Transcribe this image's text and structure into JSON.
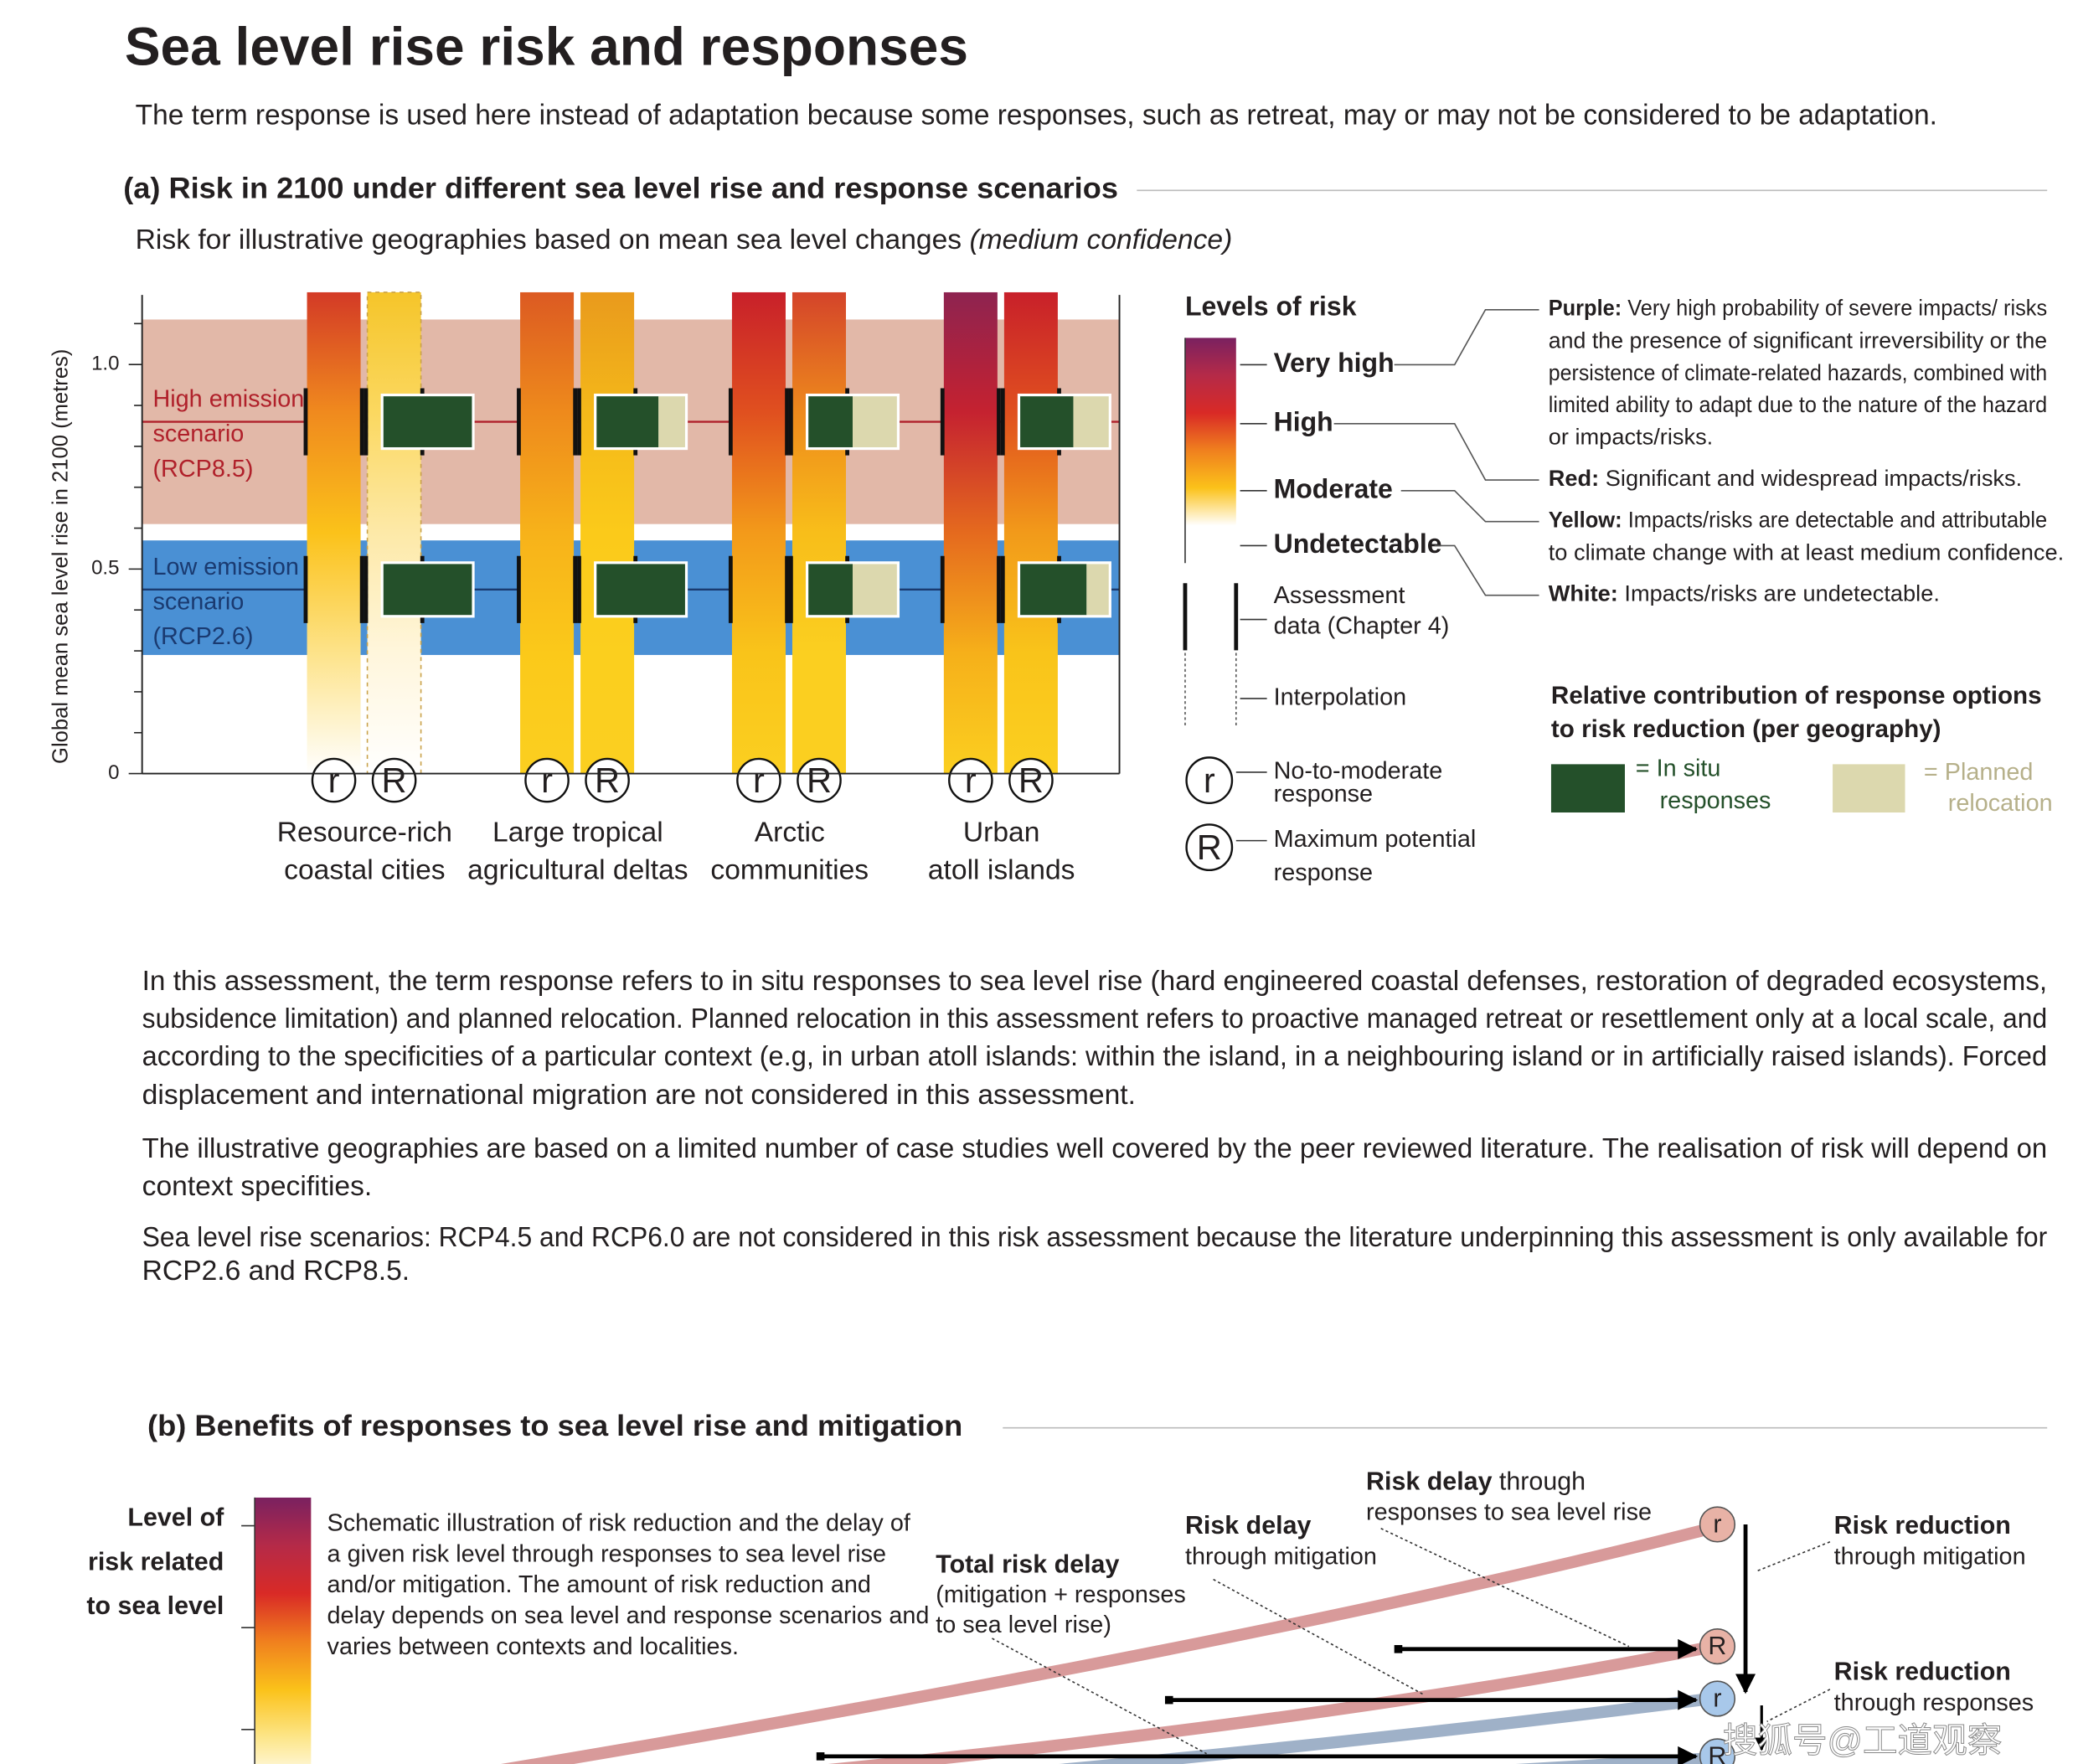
{
  "title": "Sea level rise risk and responses",
  "subtitle": "The term response is used here instead of adaptation because some responses, such as retreat, may or may not be considered to be adaptation.",
  "panel_a": {
    "heading": "(a) Risk in 2100 under different sea level rise and response scenarios",
    "caption": "Risk for illustrative geographies based on mean sea level changes",
    "caption_italic": "(medium confidence)",
    "y_axis_label": "Global mean sea level rise in 2100 (metres)",
    "ylim": [
      0,
      1.17
    ],
    "yticks": [
      0,
      0.5,
      {
        "value": 1,
        "label": "1.0"
      }
    ],
    "minor_yticks": [
      0.1,
      0.2,
      0.3,
      0.4,
      0.6,
      0.7,
      0.8,
      0.9,
      1.1
    ],
    "scenarios": [
      {
        "lines": [
          "High emission",
          "scenario",
          "(RCP8.5)"
        ],
        "range": [
          0.61,
          1.11
        ],
        "median": 0.86,
        "color": "#e2b8a8",
        "line_color": "#b0202a"
      },
      {
        "lines": [
          "Low emission",
          "scenario",
          "(RCP2.6)"
        ],
        "range": [
          0.29,
          0.57
        ],
        "median": 0.45,
        "color": "#4a90d4",
        "line_color": "#1a3a70"
      }
    ],
    "geographies": [
      {
        "name": [
          "Resource-rich",
          "coastal cities"
        ],
        "columns": [
          {
            "symbol": "r",
            "colors": [
              "#d33a26",
              "#f08a1e",
              "#fbc21a",
              "#fde38a",
              "#ffffff"
            ]
          },
          {
            "symbol": "R",
            "colors": [
              "#f5c52a",
              "#fbd860",
              "#fde9a8",
              "#fff6dc",
              "#ffffff"
            ],
            "dashed": true
          }
        ],
        "contributions": [
          {
            "in_situ": 100,
            "planned_relocation": 0
          },
          {
            "in_situ": 100,
            "planned_relocation": 0
          }
        ]
      },
      {
        "name": [
          "Large tropical",
          "agricultural deltas"
        ],
        "columns": [
          {
            "symbol": "r",
            "colors": [
              "#dc5a22",
              "#ee8a1c",
              "#f7b21a",
              "#fbc91a",
              "#fbcf20"
            ]
          },
          {
            "symbol": "R",
            "colors": [
              "#e99a1c",
              "#f4b81a",
              "#fbca1a",
              "#fbcf1e",
              "#fbcf20"
            ]
          }
        ],
        "contributions": [
          {
            "in_situ": 70,
            "planned_relocation": 30
          },
          {
            "in_situ": 100,
            "planned_relocation": 0
          }
        ]
      },
      {
        "name": [
          "Arctic",
          "communities"
        ],
        "columns": [
          {
            "symbol": "r",
            "colors": [
              "#c8202a",
              "#e0501f",
              "#f39a1a",
              "#f9c41a",
              "#fbcf20"
            ]
          },
          {
            "symbol": "R",
            "colors": [
              "#d4442a",
              "#ee8a1c",
              "#f8be1a",
              "#fbcf20",
              "#fbcf20"
            ]
          }
        ],
        "contributions": [
          {
            "in_situ": 50,
            "planned_relocation": 50
          },
          {
            "in_situ": 50,
            "planned_relocation": 50
          }
        ]
      },
      {
        "name": [
          "Urban",
          "atoll islands"
        ],
        "columns": [
          {
            "symbol": "r",
            "colors": [
              "#8e2350",
              "#c52230",
              "#e56a1e",
              "#f6b01a",
              "#fbcf20"
            ]
          },
          {
            "symbol": "R",
            "colors": [
              "#c8202a",
              "#e0501f",
              "#f29a1a",
              "#f9c41a",
              "#fbcf20"
            ]
          }
        ],
        "contributions": [
          {
            "in_situ": 60,
            "planned_relocation": 40
          },
          {
            "in_situ": 75,
            "planned_relocation": 25
          }
        ]
      }
    ],
    "levels_legend": {
      "title": "Levels of risk",
      "colors": [
        "#7a2160",
        "#b52a48",
        "#d92a26",
        "#f0801e",
        "#fbc21a",
        "#ffffff",
        "#ffffff"
      ],
      "levels": [
        {
          "label": "Very high",
          "color_name": "Purple:",
          "description": [
            "Very high probability of severe impacts/ risks",
            "and the presence of significant irreversibility or the",
            "persistence of climate-related hazards, combined with",
            "limited ability to adapt due to the nature of the hazard",
            "or impacts/risks."
          ]
        },
        {
          "label": "High",
          "color_name": "Red:",
          "description": [
            "Significant and widespread impacts/risks."
          ]
        },
        {
          "label": "Moderate",
          "color_name": "Yellow:",
          "description": [
            "Impacts/risks are detectable and attributable",
            "to climate change with at least medium confidence."
          ]
        },
        {
          "label": "Undetectable",
          "color_name": "White:",
          "description": [
            "Impacts/risks are undetectable."
          ]
        }
      ],
      "assessment": [
        "Assessment",
        "data (Chapter 4)"
      ],
      "interpolation": "Interpolation",
      "r_symbol": "r",
      "r_label": [
        "No-to-moderate",
        "response"
      ],
      "R_symbol": "R",
      "R_label": [
        "Maximum potential",
        "response"
      ]
    },
    "response_legend": {
      "title": [
        "Relative contribution of response options",
        "to risk reduction (per geography)"
      ],
      "in_situ": {
        "label": [
          "= In situ",
          "responses"
        ],
        "color": "#24502a"
      },
      "planned": {
        "label": [
          "= Planned",
          "relocation"
        ],
        "color": "#dcd8ae"
      }
    }
  },
  "notes": [
    [
      "In this assessment, the term response refers to in situ responses to sea level rise (hard engineered coastal defenses, restoration of degraded ecosystems,",
      "subsidence limitation) and planned relocation. Planned relocation in this assessment refers to proactive managed retreat or resettlement only at a local scale, and",
      "according to the specificities of a particular context (e.g, in urban atoll islands: within the island, in a neighbouring island or in artificially raised islands). Forced",
      "displacement and international migration are not considered in this assessment."
    ],
    [
      "The illustrative geographies are based on a limited number of case studies well covered by the peer reviewed literature. The realisation of risk will depend on",
      "context specifities."
    ],
    [
      "Sea level rise scenarios: RCP4.5 and RCP6.0 are not considered in this risk assessment because the literature underpinning this assessment is only available for",
      "RCP2.6 and RCP8.5."
    ]
  ],
  "panel_b": {
    "heading": "(b) Benefits of responses to sea level rise and mitigation",
    "colorbar_label": [
      "Level of",
      "risk related",
      "to sea level"
    ],
    "colorbar_colors": [
      "#7a2160",
      "#b52a48",
      "#d92a26",
      "#f0801e",
      "#fbc21a",
      "#fde68a",
      "#ffffff"
    ],
    "description": [
      "Schematic illustration of risk reduction and the delay of",
      "a given risk level through responses to sea level rise",
      "and/or mitigation. The amount of risk reduction and",
      "delay depends on sea level and response scenarios and",
      "varies between contexts and localities."
    ],
    "total_risk_delay": {
      "bold": "Total risk delay",
      "rest": [
        "(mitigation + responses",
        "to sea level rise)"
      ]
    },
    "risk_delay_mitigation": {
      "bold": "Risk delay",
      "rest": [
        "through mitigation"
      ]
    },
    "risk_delay_responses": {
      "bold": "Risk delay",
      "inline": " through",
      "rest": [
        "responses to sea level rise"
      ]
    },
    "risk_reduction_mitigation": {
      "bold": "Risk reduction",
      "rest": [
        "through mitigation"
      ]
    },
    "risk_reduction_responses": {
      "bold": "Risk reduction",
      "rest": [
        "through responses"
      ]
    },
    "end_markers": [
      {
        "symbol": "r",
        "color": "#e8b2a6"
      },
      {
        "symbol": "R",
        "color": "#e8b2a6"
      },
      {
        "symbol": "r",
        "color": "#a8c8ea"
      },
      {
        "symbol": "R",
        "color": "#a8c8ea"
      }
    ],
    "curve_colors": [
      "#d89a9a",
      "#9fb1c8"
    ]
  },
  "watermark": "搜狐号@工道观察"
}
